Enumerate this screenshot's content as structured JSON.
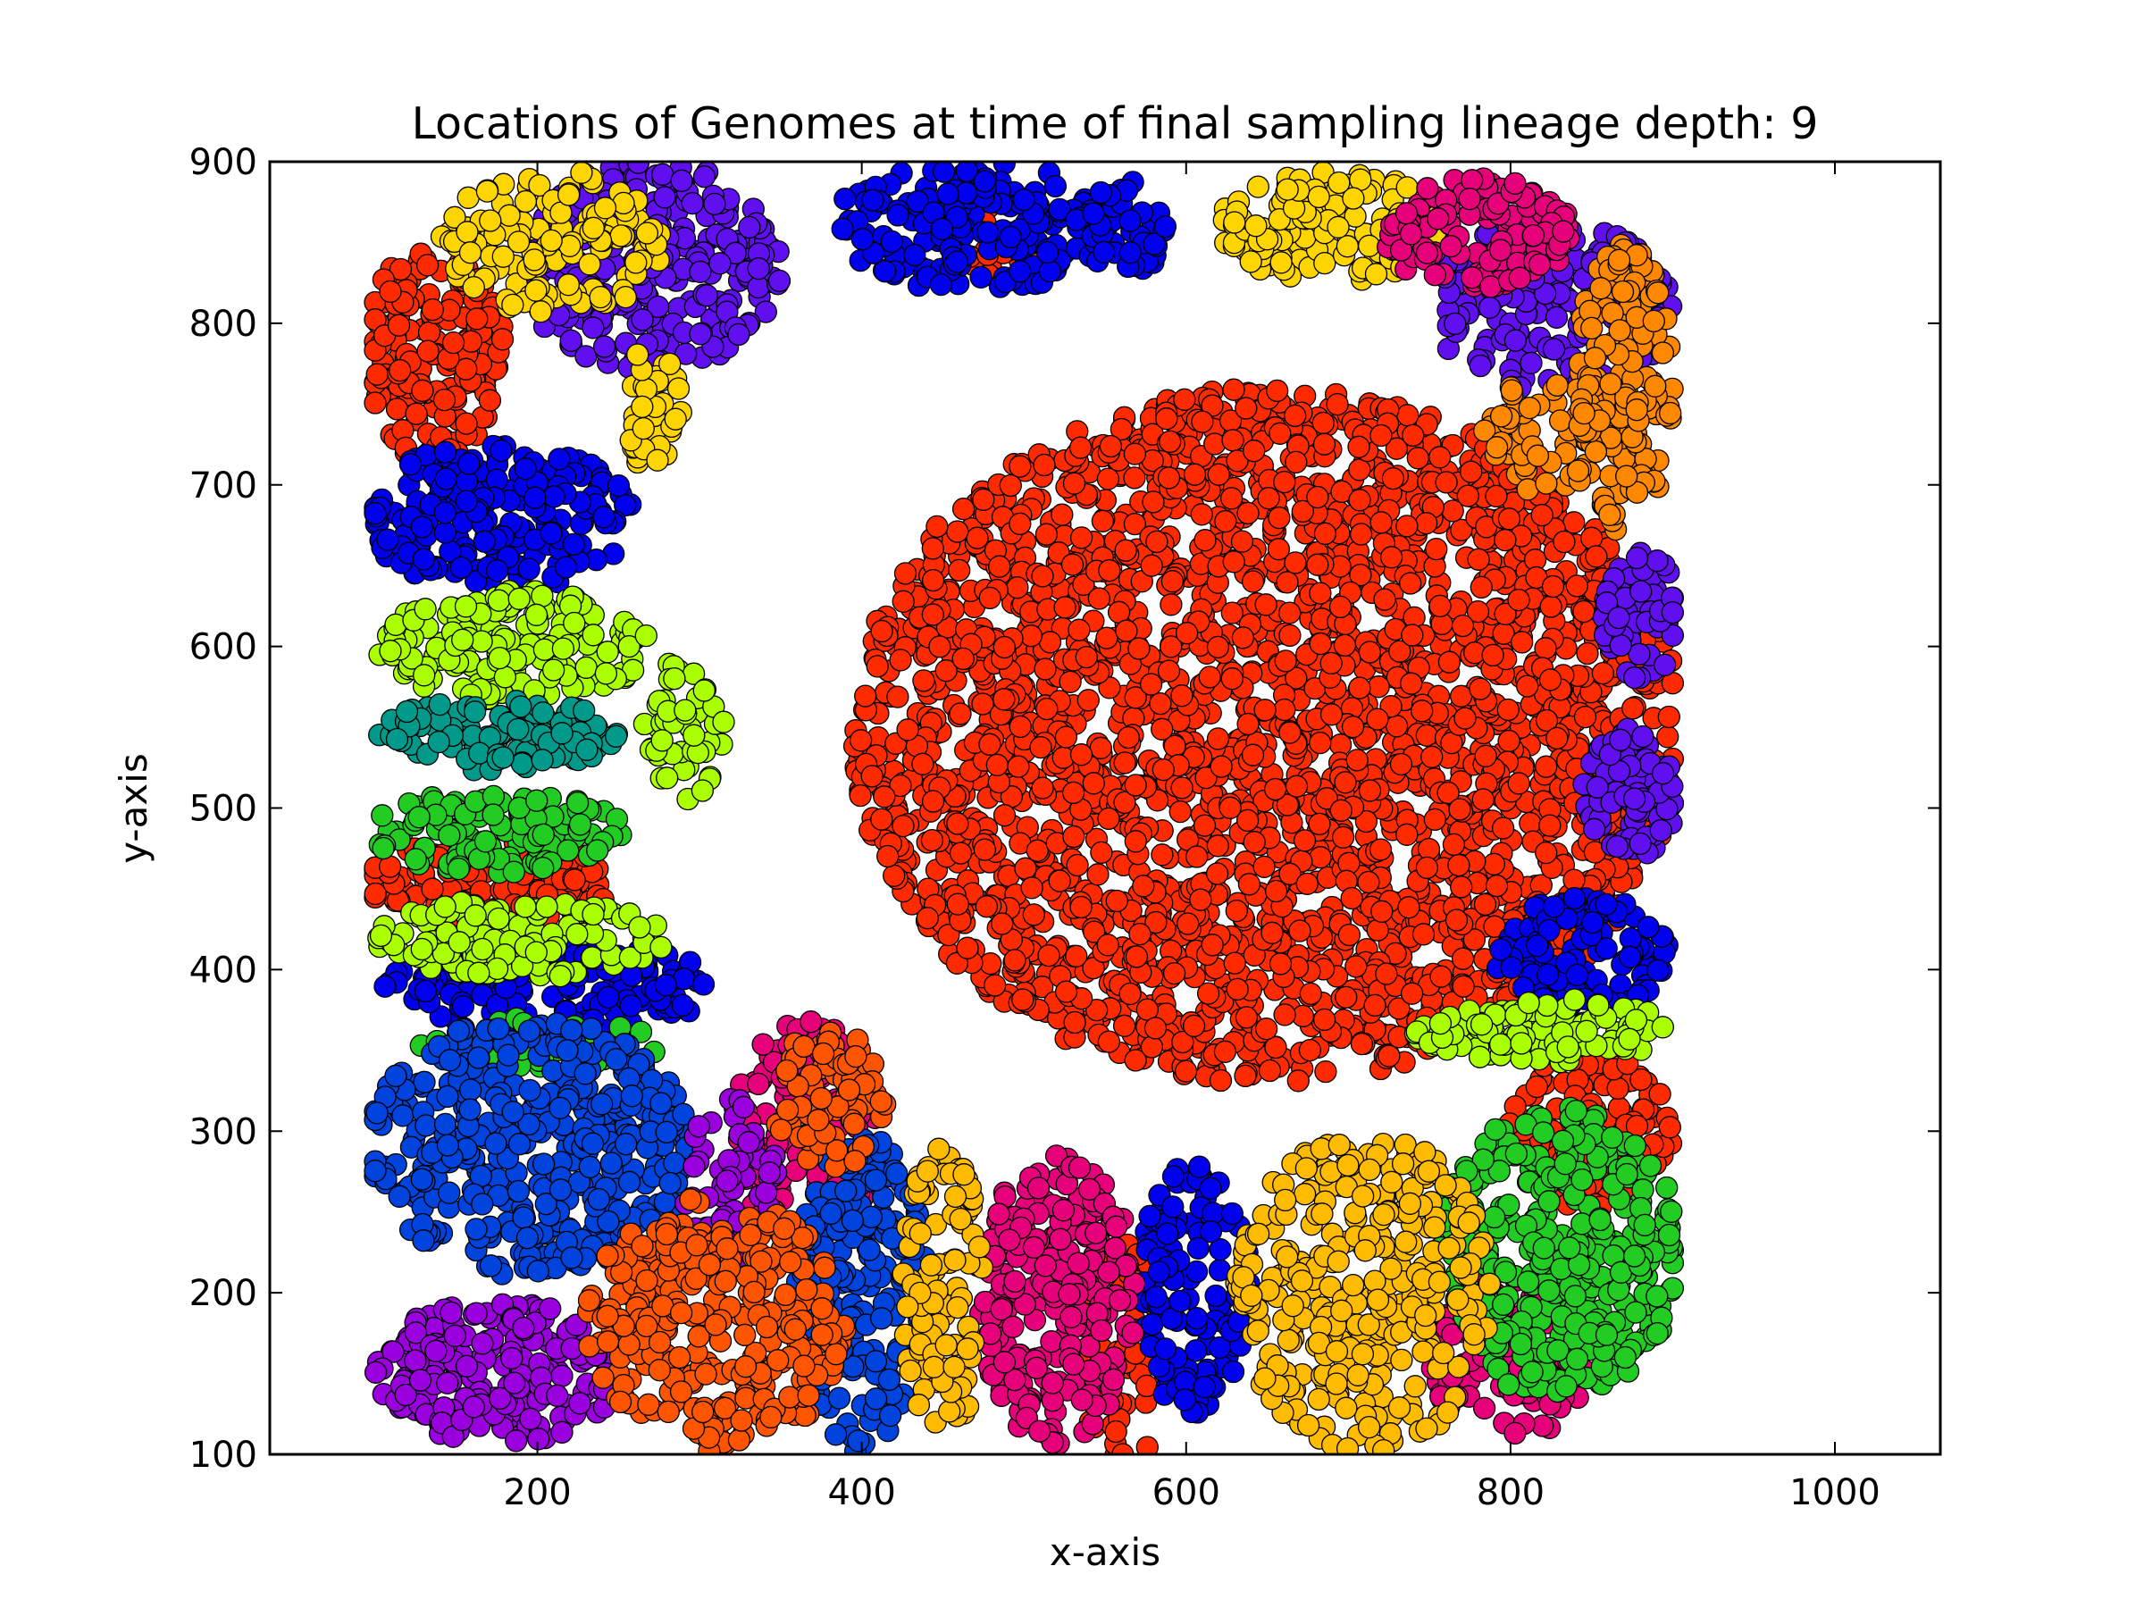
{
  "chart_data": {
    "type": "scatter",
    "title": "Locations of Genomes at time of final sampling lineage depth: 9",
    "xlabel": "x-axis",
    "ylabel": "y-axis",
    "xlim": [
      35,
      1065
    ],
    "ylim": [
      100,
      900
    ],
    "xticks": [
      "200",
      "400",
      "600",
      "800",
      "1000"
    ],
    "yticks": [
      "100",
      "200",
      "300",
      "400",
      "500",
      "600",
      "700",
      "800",
      "900"
    ],
    "xtick_values": [
      200,
      400,
      600,
      800,
      1000
    ],
    "ytick_values": [
      100,
      200,
      300,
      400,
      500,
      600,
      700,
      800,
      900
    ],
    "grid": false,
    "legend": "none",
    "marker": "circle",
    "points_visible": "thousands of overlapping points filling region x 100-900, y 100-900",
    "series": [
      {
        "color": "#ff2a00",
        "regions": [
          {
            "cx": 650,
            "cy": 545,
            "rx": 255,
            "ry": 215,
            "n": 2600
          },
          {
            "cx": 135,
            "cy": 780,
            "rx": 45,
            "ry": 65,
            "n": 170
          },
          {
            "cx": 170,
            "cy": 455,
            "rx": 80,
            "ry": 25,
            "n": 110
          },
          {
            "cx": 848,
            "cy": 300,
            "rx": 52,
            "ry": 48,
            "n": 130
          },
          {
            "cx": 560,
            "cy": 160,
            "rx": 25,
            "ry": 75,
            "n": 50
          },
          {
            "cx": 490,
            "cy": 850,
            "rx": 25,
            "ry": 30,
            "n": 30
          }
        ]
      },
      {
        "color": "#0000ee",
        "regions": [
          {
            "cx": 175,
            "cy": 680,
            "rx": 85,
            "ry": 45,
            "n": 200
          },
          {
            "cx": 470,
            "cy": 860,
            "rx": 90,
            "ry": 40,
            "n": 180
          },
          {
            "cx": 205,
            "cy": 390,
            "rx": 105,
            "ry": 30,
            "n": 150
          },
          {
            "cx": 605,
            "cy": 200,
            "rx": 35,
            "ry": 80,
            "n": 120
          },
          {
            "cx": 845,
            "cy": 410,
            "rx": 55,
            "ry": 35,
            "n": 110
          },
          {
            "cx": 560,
            "cy": 860,
            "rx": 30,
            "ry": 30,
            "n": 40
          }
        ]
      },
      {
        "color": "#6010ee",
        "regions": [
          {
            "cx": 270,
            "cy": 835,
            "rx": 80,
            "ry": 65,
            "n": 260
          },
          {
            "cx": 825,
            "cy": 810,
            "rx": 75,
            "ry": 55,
            "n": 190
          },
          {
            "cx": 880,
            "cy": 620,
            "rx": 25,
            "ry": 40,
            "n": 60
          },
          {
            "cx": 875,
            "cy": 510,
            "rx": 30,
            "ry": 40,
            "n": 80
          }
        ]
      },
      {
        "color": "#ffd500",
        "regions": [
          {
            "cx": 210,
            "cy": 850,
            "rx": 70,
            "ry": 45,
            "n": 130
          },
          {
            "cx": 690,
            "cy": 860,
            "rx": 70,
            "ry": 35,
            "n": 150
          },
          {
            "cx": 270,
            "cy": 745,
            "rx": 20,
            "ry": 40,
            "n": 40
          }
        ]
      },
      {
        "color": "#e6007a",
        "regions": [
          {
            "cx": 780,
            "cy": 855,
            "rx": 60,
            "ry": 35,
            "n": 130
          },
          {
            "cx": 520,
            "cy": 195,
            "rx": 50,
            "ry": 90,
            "n": 220
          },
          {
            "cx": 800,
            "cy": 160,
            "rx": 50,
            "ry": 50,
            "n": 100
          },
          {
            "cx": 365,
            "cy": 300,
            "rx": 45,
            "ry": 70,
            "n": 120
          }
        ]
      },
      {
        "color": "#ff8800",
        "regions": [
          {
            "cx": 870,
            "cy": 760,
            "rx": 30,
            "ry": 90,
            "n": 160
          },
          {
            "cx": 820,
            "cy": 730,
            "rx": 40,
            "ry": 35,
            "n": 60
          }
        ]
      },
      {
        "color": "#aaff00",
        "regions": [
          {
            "cx": 185,
            "cy": 600,
            "rx": 85,
            "ry": 35,
            "n": 180
          },
          {
            "cx": 190,
            "cy": 420,
            "rx": 90,
            "ry": 25,
            "n": 120
          },
          {
            "cx": 820,
            "cy": 362,
            "rx": 80,
            "ry": 20,
            "n": 110
          },
          {
            "cx": 290,
            "cy": 550,
            "rx": 25,
            "ry": 45,
            "n": 50
          }
        ]
      },
      {
        "color": "#00998a",
        "regions": [
          {
            "cx": 175,
            "cy": 545,
            "rx": 75,
            "ry": 22,
            "n": 120
          }
        ]
      },
      {
        "color": "#22cc22",
        "regions": [
          {
            "cx": 175,
            "cy": 485,
            "rx": 80,
            "ry": 25,
            "n": 120
          },
          {
            "cx": 830,
            "cy": 225,
            "rx": 75,
            "ry": 90,
            "n": 360
          },
          {
            "cx": 200,
            "cy": 355,
            "rx": 80,
            "ry": 15,
            "n": 40
          }
        ]
      },
      {
        "color": "#0044dd",
        "regions": [
          {
            "cx": 195,
            "cy": 290,
            "rx": 100,
            "ry": 80,
            "n": 420
          },
          {
            "cx": 400,
            "cy": 200,
            "rx": 40,
            "ry": 100,
            "n": 200
          }
        ]
      },
      {
        "color": "#9900dd",
        "regions": [
          {
            "cx": 175,
            "cy": 150,
            "rx": 75,
            "ry": 45,
            "n": 200
          },
          {
            "cx": 320,
            "cy": 270,
            "rx": 30,
            "ry": 50,
            "n": 60
          }
        ]
      },
      {
        "color": "#ff5500",
        "regions": [
          {
            "cx": 310,
            "cy": 180,
            "rx": 80,
            "ry": 80,
            "n": 300
          },
          {
            "cx": 380,
            "cy": 320,
            "rx": 35,
            "ry": 45,
            "n": 80
          }
        ]
      },
      {
        "color": "#ffbb00",
        "regions": [
          {
            "cx": 710,
            "cy": 200,
            "rx": 80,
            "ry": 100,
            "n": 330
          },
          {
            "cx": 450,
            "cy": 200,
            "rx": 25,
            "ry": 90,
            "n": 90
          }
        ]
      }
    ]
  }
}
